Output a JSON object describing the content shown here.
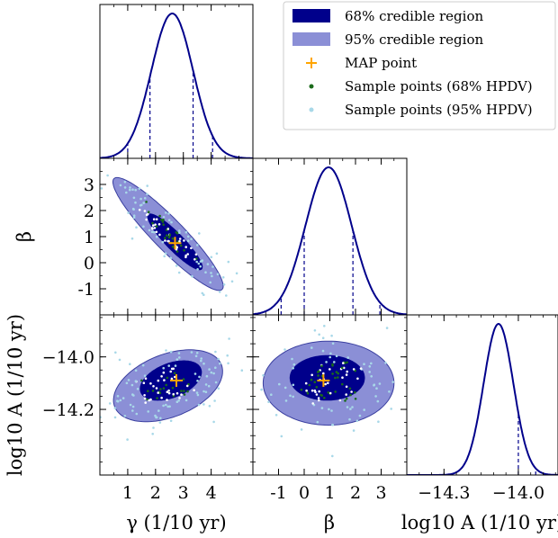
{
  "chart_data": {
    "type": "scatter",
    "description_kind": "corner",
    "parameters": [
      {
        "key": "gamma",
        "label": "γ (1/10 yr)",
        "range": [
          0.0,
          5.5
        ],
        "ticks": [
          1,
          2,
          3,
          4
        ],
        "tick_labels": [
          "1",
          "2",
          "3",
          "4"
        ]
      },
      {
        "key": "beta",
        "label": "β",
        "range": [
          -2.0,
          4.0
        ],
        "ticks": [
          -1,
          0,
          1,
          2,
          3
        ],
        "tick_labels": [
          "-1",
          "0",
          "1",
          "2",
          "3"
        ]
      },
      {
        "key": "log10A",
        "label": "log10 A (1/10 yr)",
        "range": [
          -14.45,
          -13.84
        ],
        "ticks": [
          -14.3,
          -14.0
        ],
        "tick_labels": [
          "−14.3",
          "−14.0"
        ],
        "y_ticks": [
          -14.0,
          -14.2
        ],
        "y_tick_labels": [
          "−14.0",
          "−14.2"
        ]
      }
    ],
    "marginals": [
      {
        "param": "gamma",
        "mean": 2.6,
        "sd": 0.75,
        "lines": [
          1.0,
          1.8,
          3.35,
          4.05
        ]
      },
      {
        "param": "beta",
        "mean": 0.95,
        "sd": 0.9,
        "lines": [
          -0.9,
          0.0,
          1.9,
          2.95
        ]
      },
      {
        "param": "log10A",
        "mean": -14.08,
        "sd": 0.06,
        "lines": [
          -14.37,
          -14.29,
          -14.0,
          -13.93
        ]
      }
    ],
    "joint": [
      {
        "x": "gamma",
        "y": "beta",
        "map": [
          2.7,
          0.75
        ],
        "c68": {
          "cx": 2.7,
          "cy": 0.8,
          "rx": 1.35,
          "ry": 0.33,
          "angle": -45
        },
        "c95": {
          "cx": 2.45,
          "cy": 1.1,
          "rx": 2.75,
          "ry": 0.6,
          "angle": -45
        }
      },
      {
        "x": "gamma",
        "y": "log10A",
        "map": [
          2.75,
          -14.09
        ],
        "c68": {
          "cx": 2.55,
          "cy": -14.09,
          "rx": 1.15,
          "ry": 0.065,
          "angle": 20
        },
        "c95": {
          "cx": 2.45,
          "cy": -14.11,
          "rx": 2.05,
          "ry": 0.12,
          "angle": 20
        }
      },
      {
        "x": "beta",
        "y": "log10A",
        "map": [
          0.75,
          -14.09
        ],
        "c68": {
          "cx": 0.9,
          "cy": -14.08,
          "rx": 1.45,
          "ry": 0.085,
          "angle": 0
        },
        "c95": {
          "cx": 0.95,
          "cy": -14.1,
          "rx": 2.55,
          "ry": 0.16,
          "angle": 0
        }
      }
    ],
    "legend": {
      "placement": "top-right",
      "entries": [
        {
          "label": "68% credible region",
          "kind": "patch",
          "color": "#00008B"
        },
        {
          "label": "95% credible region",
          "kind": "patch",
          "color": "#8B8FD6"
        },
        {
          "label": "MAP point",
          "kind": "plus",
          "color": "#FFA500"
        },
        {
          "label": "Sample points (68% HPDV)",
          "kind": "dot",
          "color": "#1B6B1B"
        },
        {
          "label": "Sample points (95% HPDV)",
          "kind": "dot",
          "color": "#A8D8E8"
        }
      ]
    },
    "colors": {
      "line": "#00008B",
      "c68": "#00008B",
      "c95": "#8B8FD6",
      "c95_edge": "#3A3FA0",
      "map": "#FFA500",
      "pts68": "#1B6B1B",
      "pts95": "#A8D8E8",
      "pts_white": "#FFFFFF"
    }
  }
}
